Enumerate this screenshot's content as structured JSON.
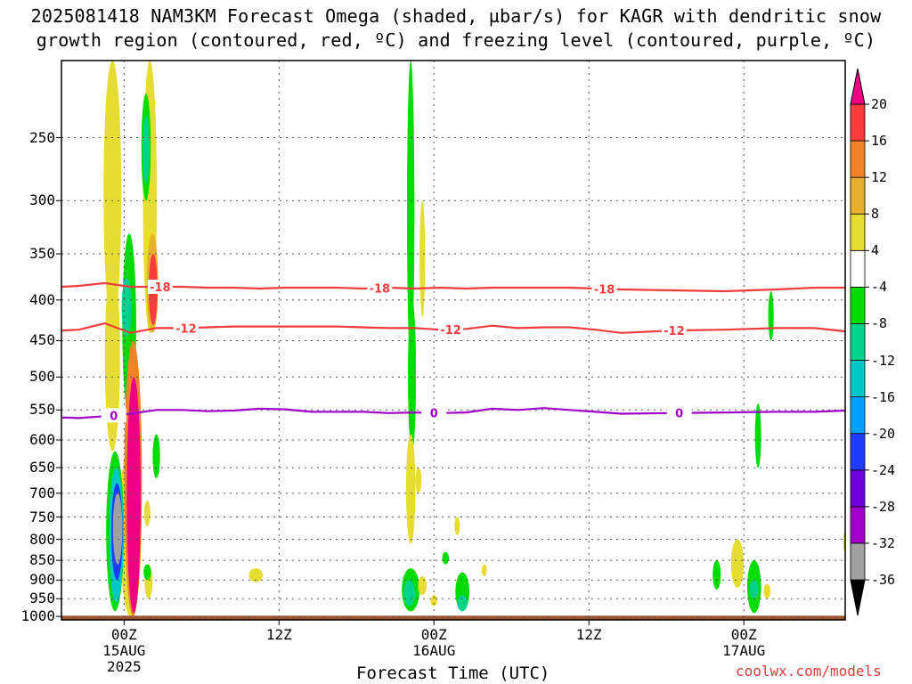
{
  "chart_data": {
    "type": "heatmap",
    "title": "2025081418 NAM3KM Forecast Omega (shaded, µbar/s) for KAGR with dendritic snow",
    "title_line2": "growth region (contoured, red, ºC) and freezing level (contoured, purple, ºC)",
    "xlabel": "Forecast Time (UTC)",
    "ylabel": "",
    "credit": "coolwx.com/models",
    "x_ticks": [
      {
        "label": "00Z",
        "sub": "15AUG",
        "sub2": "2025",
        "hour": 10
      },
      {
        "label": "12Z",
        "sub": "",
        "sub2": "",
        "hour": 22
      },
      {
        "label": "00Z",
        "sub": "16AUG",
        "sub2": "",
        "hour": 34
      },
      {
        "label": "12Z",
        "sub": "",
        "sub2": "",
        "hour": 46
      },
      {
        "label": "00Z",
        "sub": "17AUG",
        "sub2": "",
        "hour": 58
      }
    ],
    "xlim": [
      5.15,
      65.85
    ],
    "y_ticks": [
      250,
      300,
      350,
      400,
      450,
      500,
      550,
      600,
      650,
      700,
      750,
      800,
      850,
      900,
      950,
      1000
    ],
    "ylim": [
      1010,
      200
    ],
    "grid": "dotted",
    "colorbar": {
      "levels": [
        -36,
        -32,
        -28,
        -24,
        -20,
        -16,
        -12,
        -8,
        -4,
        4,
        8,
        12,
        16,
        20
      ],
      "colors": [
        "#000000",
        "#a0a0a0",
        "#a000c8",
        "#6e00dc",
        "#1e3cff",
        "#00a0ff",
        "#00c8c8",
        "#00d28c",
        "#00dc00",
        "#ffffff",
        "#e6dc32",
        "#e6af2d",
        "#f08228",
        "#fa3c3c",
        "#f00082"
      ]
    },
    "contour_labels": {
      "dgz_top": "-18",
      "dgz_bottom": "-12",
      "freezing": "0"
    },
    "dgz_top_pressure": [
      385,
      384,
      381,
      385,
      385,
      385,
      386,
      386,
      387,
      386,
      386,
      386,
      387,
      386,
      387,
      386,
      387,
      386,
      386,
      386,
      386,
      387,
      388,
      389,
      390,
      388,
      386,
      386
    ],
    "dgz_bottom_pressure": [
      437,
      436,
      428,
      440,
      434,
      434,
      433,
      432,
      432,
      432,
      432,
      432,
      433,
      434,
      434,
      436,
      435,
      431,
      434,
      433,
      433,
      436,
      440,
      437,
      436,
      434,
      434,
      438
    ],
    "freezing_level_pressure": [
      562,
      563,
      560,
      556,
      550,
      550,
      552,
      551,
      548,
      549,
      553,
      553,
      553,
      555,
      554,
      555,
      554,
      548,
      550,
      547,
      550,
      553,
      556,
      555,
      554,
      553,
      553,
      551
    ],
    "contour_hours": [
      5.15,
      6.5,
      8.5,
      10.5,
      12.5,
      14.5,
      16.5,
      18.5,
      20.5,
      22.5,
      24.5,
      26.5,
      28.5,
      30.5,
      32.5,
      34.5,
      36.5,
      38.5,
      40.5,
      42.5,
      44.5,
      46.5,
      48.5,
      52.5,
      56.5,
      60.5,
      63.5,
      65.85
    ],
    "omega_features": [
      {
        "hour": 9.1,
        "p_top": 200,
        "p_bot": 430,
        "w": 1.1,
        "value": 6
      },
      {
        "hour": 9.1,
        "p_top": 360,
        "p_bot": 620,
        "w": 0.9,
        "value": 6
      },
      {
        "hour": 10.4,
        "p_top": 330,
        "p_bot": 560,
        "w": 0.8,
        "value": -8
      },
      {
        "hour": 10.2,
        "p_top": 375,
        "p_bot": 445,
        "w": 0.5,
        "value": -12
      },
      {
        "hour": 10.5,
        "p_top": 600,
        "p_bot": 1000,
        "w": 1.4,
        "value": 6
      },
      {
        "hour": 10.7,
        "p_top": 450,
        "p_bot": 1000,
        "w": 1.1,
        "value": 14
      },
      {
        "hour": 10.75,
        "p_top": 500,
        "p_bot": 990,
        "w": 0.8,
        "value": 22
      },
      {
        "hour": 9.3,
        "p_top": 620,
        "p_bot": 985,
        "w": 1.1,
        "value": -8
      },
      {
        "hour": 9.4,
        "p_top": 650,
        "p_bot": 960,
        "w": 0.85,
        "value": -16
      },
      {
        "hour": 9.45,
        "p_top": 680,
        "p_bot": 900,
        "w": 0.6,
        "value": -24
      },
      {
        "hour": 9.5,
        "p_top": 700,
        "p_bot": 860,
        "w": 0.45,
        "value": -36
      },
      {
        "hour": 12.0,
        "p_top": 200,
        "p_bot": 440,
        "w": 0.8,
        "value": 6
      },
      {
        "hour": 12.2,
        "p_top": 330,
        "p_bot": 440,
        "w": 0.6,
        "value": 10
      },
      {
        "hour": 12.25,
        "p_top": 350,
        "p_bot": 430,
        "w": 0.4,
        "value": 18
      },
      {
        "hour": 11.7,
        "p_top": 220,
        "p_bot": 300,
        "w": 0.45,
        "value": -8
      },
      {
        "hour": 11.7,
        "p_top": 235,
        "p_bot": 285,
        "w": 0.25,
        "value": -12
      },
      {
        "hour": 11.9,
        "p_top": 860,
        "p_bot": 950,
        "w": 0.35,
        "value": 6
      },
      {
        "hour": 12.5,
        "p_top": 590,
        "p_bot": 670,
        "w": 0.3,
        "value": -8
      },
      {
        "hour": 11.8,
        "p_top": 715,
        "p_bot": 770,
        "w": 0.2,
        "value": 6
      },
      {
        "hour": 11.8,
        "p_top": 860,
        "p_bot": 900,
        "w": 0.3,
        "value": -8
      },
      {
        "hour": 20.2,
        "p_top": 870,
        "p_bot": 905,
        "w": 0.8,
        "value": 6
      },
      {
        "hour": 32.2,
        "p_top": 200,
        "p_bot": 480,
        "w": 0.3,
        "value": -8
      },
      {
        "hour": 32.3,
        "p_top": 400,
        "p_bot": 620,
        "w": 0.35,
        "value": -8
      },
      {
        "hour": 32.2,
        "p_top": 590,
        "p_bot": 810,
        "w": 0.45,
        "value": 6
      },
      {
        "hour": 33.1,
        "p_top": 300,
        "p_bot": 420,
        "w": 0.15,
        "value": 6
      },
      {
        "hour": 32.2,
        "p_top": 870,
        "p_bot": 985,
        "w": 1.1,
        "value": -8
      },
      {
        "hour": 32.1,
        "p_top": 900,
        "p_bot": 970,
        "w": 0.6,
        "value": -12
      },
      {
        "hour": 32.8,
        "p_top": 650,
        "p_bot": 700,
        "w": 0.2,
        "value": 6
      },
      {
        "hour": 33.1,
        "p_top": 890,
        "p_bot": 940,
        "w": 0.4,
        "value": 6
      },
      {
        "hour": 34.0,
        "p_top": 940,
        "p_bot": 970,
        "w": 0.25,
        "value": 6
      },
      {
        "hour": 34.9,
        "p_top": 830,
        "p_bot": 860,
        "w": 0.25,
        "value": -8
      },
      {
        "hour": 36.2,
        "p_top": 880,
        "p_bot": 985,
        "w": 0.8,
        "value": -8
      },
      {
        "hour": 36.2,
        "p_top": 940,
        "p_bot": 985,
        "w": 0.5,
        "value": -12
      },
      {
        "hour": 35.8,
        "p_top": 750,
        "p_bot": 790,
        "w": 0.15,
        "value": 6
      },
      {
        "hour": 37.9,
        "p_top": 860,
        "p_bot": 890,
        "w": 0.12,
        "value": 6
      },
      {
        "hour": 55.9,
        "p_top": 850,
        "p_bot": 925,
        "w": 0.35,
        "value": -8
      },
      {
        "hour": 57.5,
        "p_top": 800,
        "p_bot": 920,
        "w": 0.7,
        "value": 6
      },
      {
        "hour": 58.8,
        "p_top": 850,
        "p_bot": 990,
        "w": 0.8,
        "value": -8
      },
      {
        "hour": 58.8,
        "p_top": 900,
        "p_bot": 950,
        "w": 0.4,
        "value": -12
      },
      {
        "hour": 59.8,
        "p_top": 910,
        "p_bot": 950,
        "w": 0.25,
        "value": 6
      },
      {
        "hour": 59.1,
        "p_top": 540,
        "p_bot": 650,
        "w": 0.2,
        "value": -8
      },
      {
        "hour": 60.1,
        "p_top": 390,
        "p_bot": 450,
        "w": 0.15,
        "value": -8
      },
      {
        "hour": 65.9,
        "p_top": 780,
        "p_bot": 830,
        "w": 0.12,
        "value": 6
      }
    ],
    "ground": {
      "p_top": 998,
      "p_bot": 1010,
      "color": "#a0522d"
    }
  }
}
